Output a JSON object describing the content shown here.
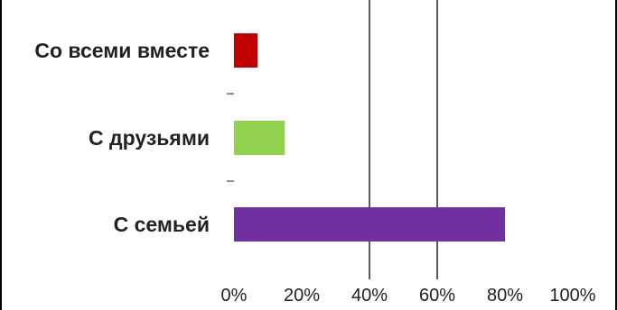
{
  "chart_data": {
    "type": "bar",
    "orientation": "horizontal",
    "title": "",
    "categories": [
      "Со всеми вместе",
      "С друзьями",
      "С семьей"
    ],
    "values": [
      7,
      15,
      80
    ],
    "colors": [
      "#c00000",
      "#92d050",
      "#7030a0"
    ],
    "xlim": [
      0,
      100
    ],
    "x_ticks": [
      "0%",
      "20%",
      "40%",
      "60%",
      "80%",
      "100%"
    ],
    "x_tick_values": [
      0,
      20,
      40,
      60,
      80,
      100
    ],
    "gridlines": [
      40,
      60
    ],
    "grid": true
  }
}
